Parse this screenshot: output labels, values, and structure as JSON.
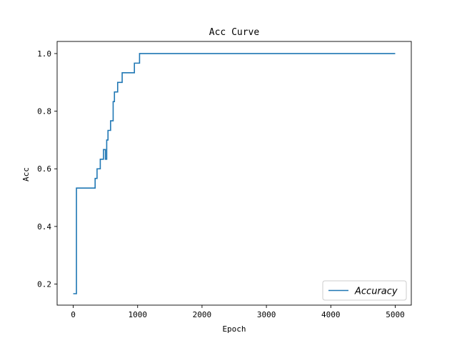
{
  "chart_data": {
    "type": "line",
    "title": "Acc Curve",
    "xlabel": "Epoch",
    "ylabel": "Acc",
    "xlim": [
      -250,
      5250
    ],
    "ylim": [
      0.127,
      1.042
    ],
    "xticks": [
      0,
      1000,
      2000,
      3000,
      4000,
      5000
    ],
    "xtick_labels": [
      "0",
      "1000",
      "2000",
      "3000",
      "4000",
      "5000"
    ],
    "yticks": [
      0.2,
      0.4,
      0.6,
      0.8,
      1.0
    ],
    "ytick_labels": [
      "0.2",
      "0.4",
      "0.6",
      "0.8",
      "1.0"
    ],
    "grid": false,
    "legend_position": "bottom-right",
    "series": [
      {
        "name": "Accuracy",
        "color": "#1f77b4",
        "x": [
          0,
          50,
          50,
          340,
          340,
          370,
          370,
          420,
          420,
          470,
          470,
          500,
          500,
          520,
          520,
          540,
          540,
          580,
          580,
          620,
          620,
          640,
          640,
          660,
          660,
          690,
          690,
          760,
          760,
          950,
          950,
          1030,
          1030,
          5000
        ],
        "y": [
          0.1667,
          0.1667,
          0.5333,
          0.5333,
          0.5667,
          0.5667,
          0.6,
          0.6,
          0.6333,
          0.6333,
          0.6667,
          0.6667,
          0.6333,
          0.6333,
          0.7,
          0.7,
          0.7333,
          0.7333,
          0.7667,
          0.7667,
          0.8333,
          0.8333,
          0.8667,
          0.8667,
          0.8667,
          0.8667,
          0.9,
          0.9,
          0.9333,
          0.9333,
          0.9667,
          0.9667,
          1.0,
          1.0
        ]
      }
    ]
  }
}
